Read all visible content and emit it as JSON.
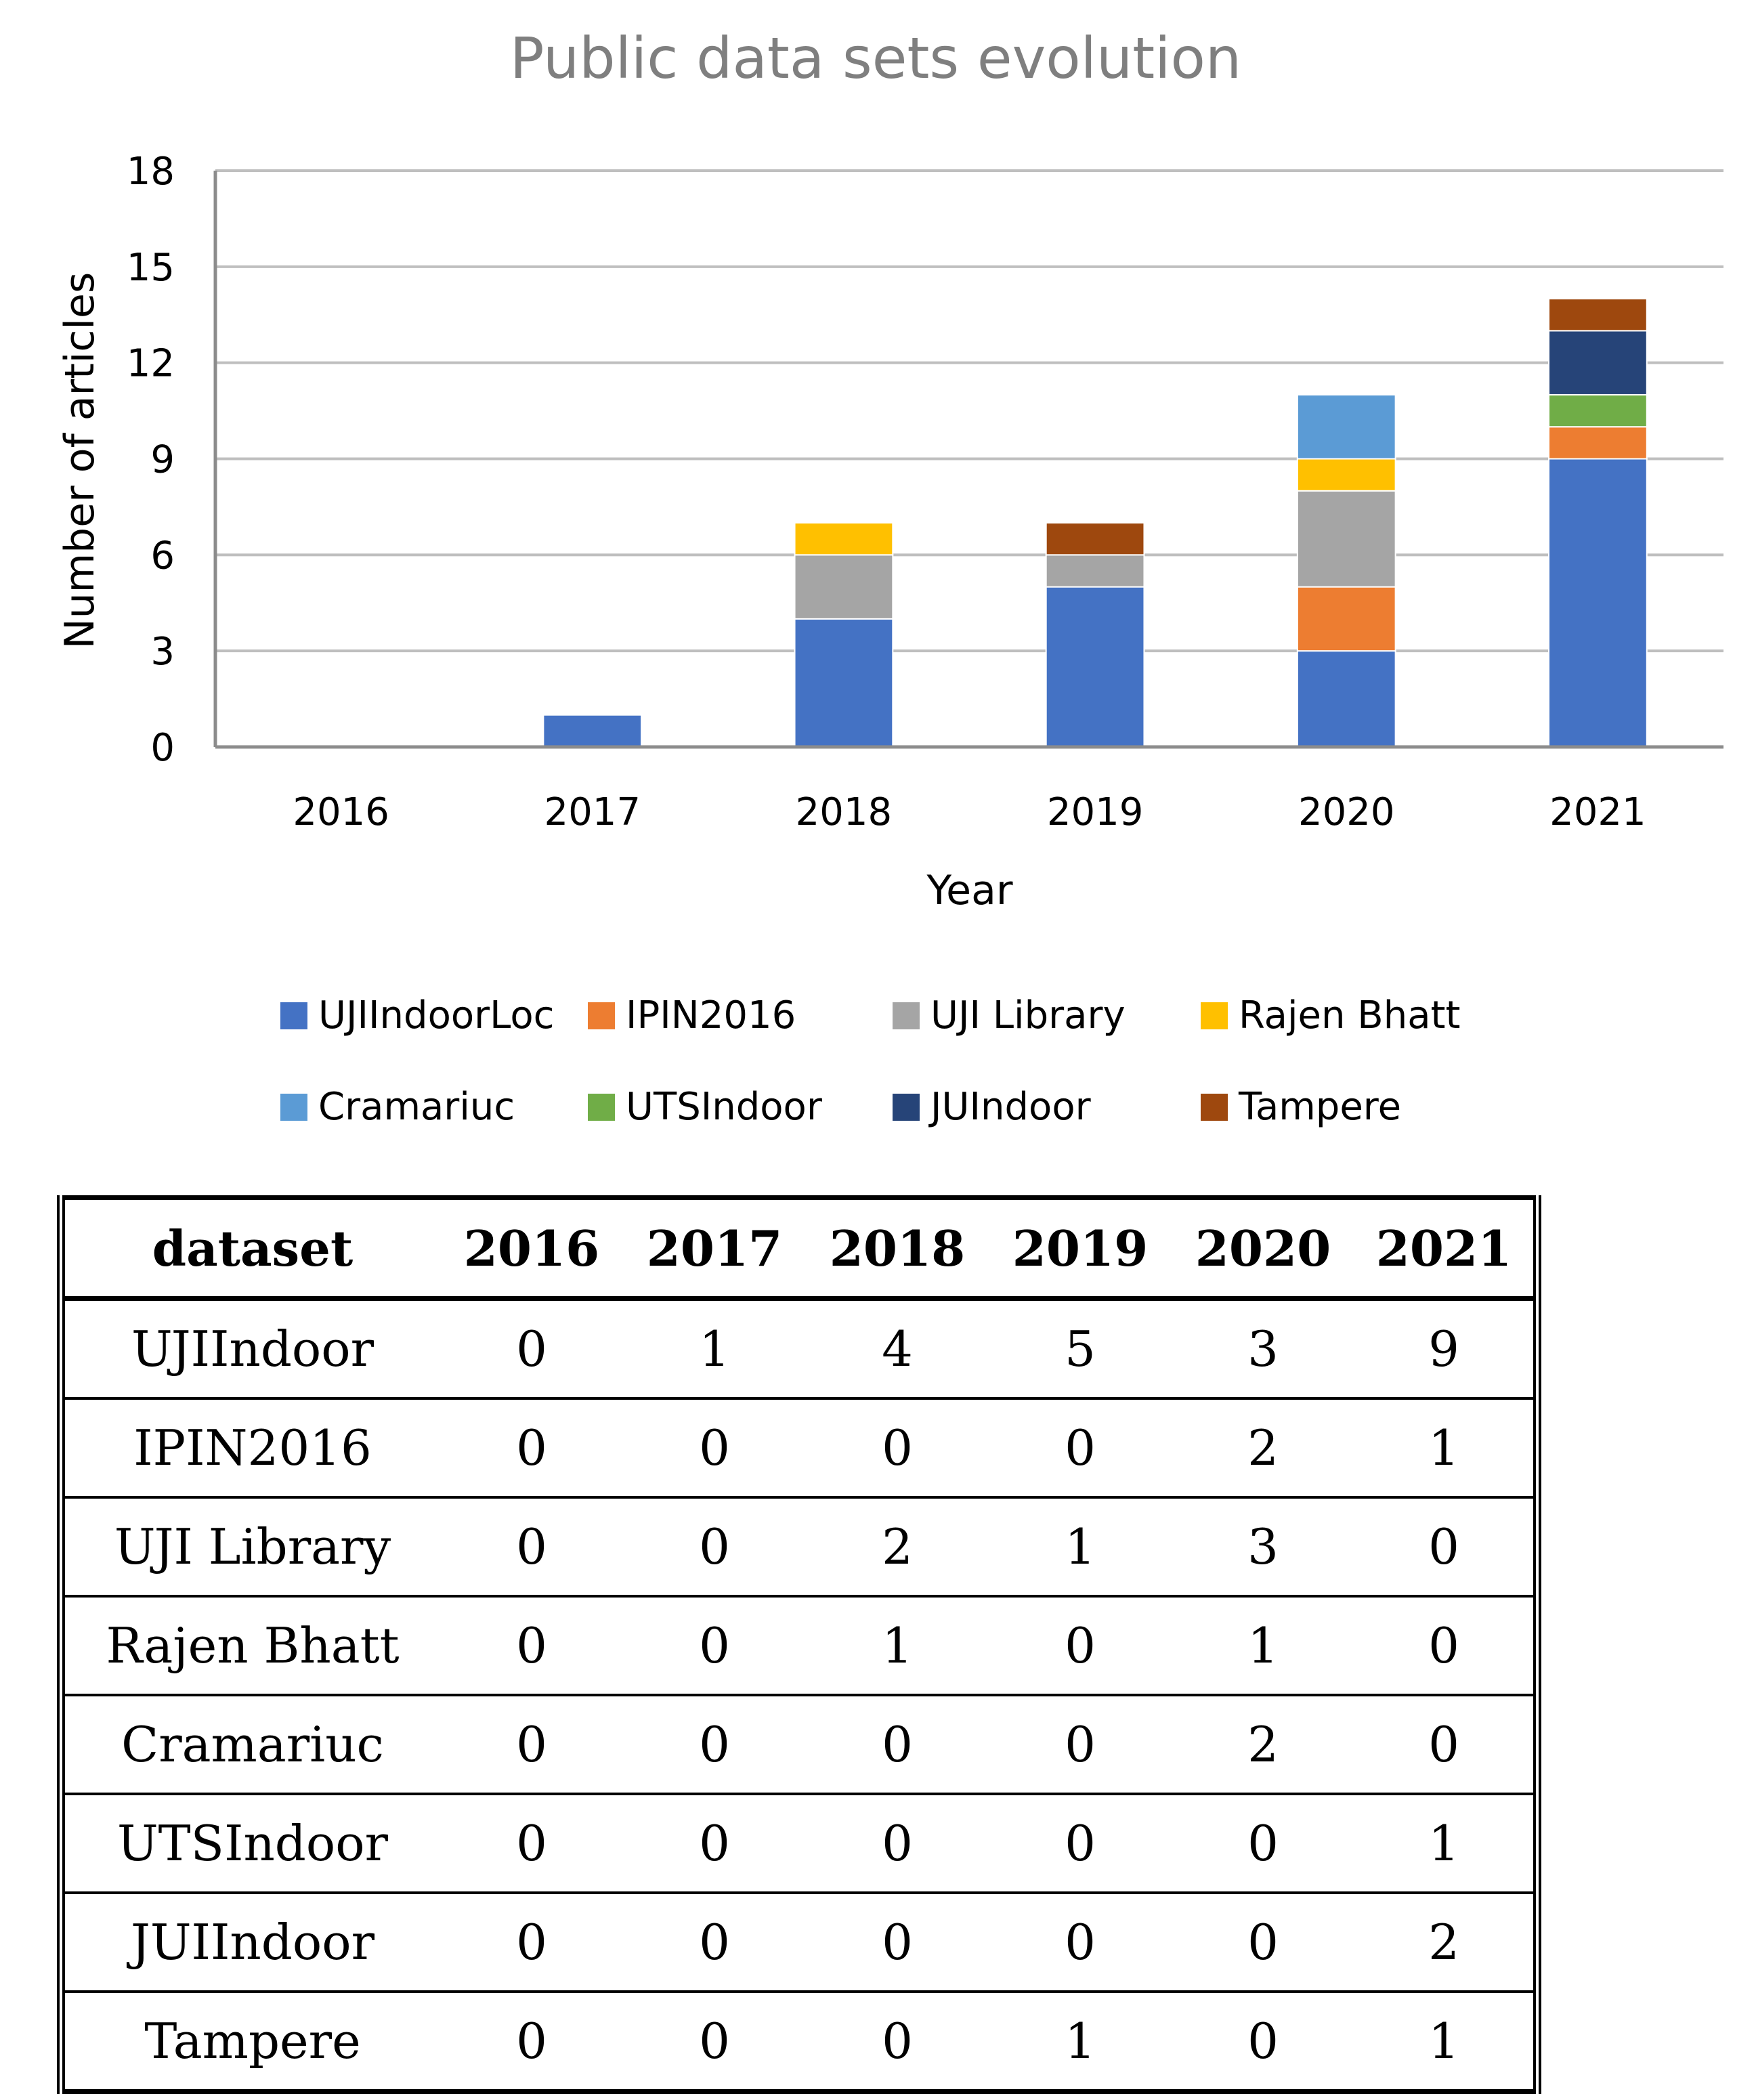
{
  "chart_data": {
    "type": "bar",
    "stacked": true,
    "title": "Public data sets evolution",
    "xlabel": "Year",
    "ylabel": "Number of articles",
    "ylim": [
      0,
      18
    ],
    "yticks": [
      0,
      3,
      6,
      9,
      12,
      15,
      18
    ],
    "grid": true,
    "legend_position": "bottom",
    "categories": [
      "2016",
      "2017",
      "2018",
      "2019",
      "2020",
      "2021"
    ],
    "series": [
      {
        "name": "UJIIndoorLoc",
        "color": "#4472C4",
        "values": [
          0,
          1,
          4,
          5,
          3,
          9
        ]
      },
      {
        "name": "IPIN2016",
        "color": "#ED7D31",
        "values": [
          0,
          0,
          0,
          0,
          2,
          1
        ]
      },
      {
        "name": "UJI Library",
        "color": "#A5A5A5",
        "values": [
          0,
          0,
          2,
          1,
          3,
          0
        ]
      },
      {
        "name": "Rajen Bhatt",
        "color": "#FFC000",
        "values": [
          0,
          0,
          1,
          0,
          1,
          0
        ]
      },
      {
        "name": "Cramariuc",
        "color": "#5B9BD5",
        "values": [
          0,
          0,
          0,
          0,
          2,
          0
        ]
      },
      {
        "name": "UTSIndoor",
        "color": "#70AD47",
        "values": [
          0,
          0,
          0,
          0,
          0,
          1
        ]
      },
      {
        "name": "JUIndoor",
        "color": "#264478",
        "values": [
          0,
          0,
          0,
          0,
          0,
          2
        ]
      },
      {
        "name": "Tampere",
        "color": "#9E480E",
        "values": [
          0,
          0,
          0,
          1,
          0,
          1
        ]
      }
    ]
  },
  "table": {
    "headers": [
      "dataset",
      "2016",
      "2017",
      "2018",
      "2019",
      "2020",
      "2021"
    ],
    "rows": [
      [
        "UJIIndoor",
        "0",
        "1",
        "4",
        "5",
        "3",
        "9"
      ],
      [
        "IPIN2016",
        "0",
        "0",
        "0",
        "0",
        "2",
        "1"
      ],
      [
        "UJI Library",
        "0",
        "0",
        "2",
        "1",
        "3",
        "0"
      ],
      [
        "Rajen Bhatt",
        "0",
        "0",
        "1",
        "0",
        "1",
        "0"
      ],
      [
        "Cramariuc",
        "0",
        "0",
        "0",
        "0",
        "2",
        "0"
      ],
      [
        "UTSIndoor",
        "0",
        "0",
        "0",
        "0",
        "0",
        "1"
      ],
      [
        "JUIIndoor",
        "0",
        "0",
        "0",
        "0",
        "0",
        "2"
      ],
      [
        "Tampere",
        "0",
        "0",
        "0",
        "1",
        "0",
        "1"
      ]
    ]
  }
}
